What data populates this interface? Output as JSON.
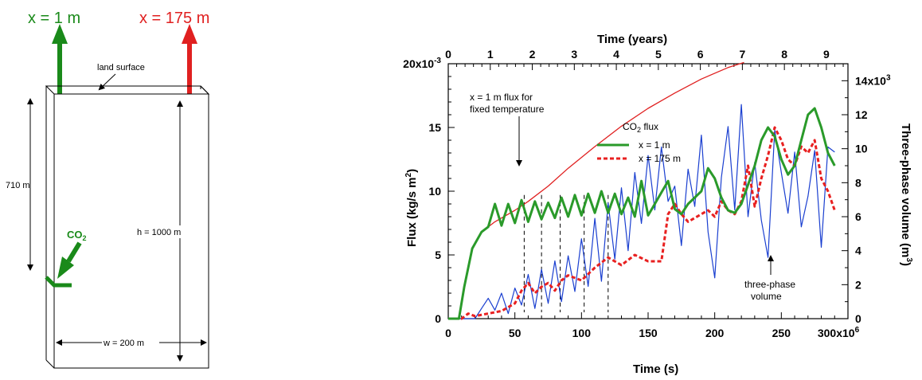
{
  "schematic": {
    "left_label": "x = 1 m",
    "right_label": "x = 175 m",
    "land_surface": "land surface",
    "depth_label": "710 m",
    "height_label": "h = 1000 m",
    "width_label": "w = 200 m",
    "co2_label": "CO",
    "co2_sub": "2",
    "colors": {
      "green": "#1a8a1a",
      "red": "#e02020",
      "black": "#000000"
    }
  },
  "chart_data": {
    "type": "line",
    "xlabel": "Time (s)",
    "x_ticks": [
      "0",
      "50",
      "100",
      "150",
      "200",
      "250",
      "300x10"
    ],
    "x_exp": "6",
    "xlim": [
      0,
      300000000
    ],
    "top_label": "Time (years)",
    "top_ticks": [
      "0",
      "1",
      "2",
      "3",
      "4",
      "5",
      "6",
      "7",
      "8",
      "9"
    ],
    "ylabel_left": "Flux (kg/s m",
    "ylabel_left_sup": "2",
    "ylabel_left_end": ")",
    "left_ticks": [
      "0",
      "5",
      "10",
      "15",
      "20x10"
    ],
    "left_exp": "-3",
    "ylim_left": [
      0,
      0.02
    ],
    "ylabel_right": "Three-phase volume (m",
    "ylabel_right_sup": "3",
    "ylabel_right_end": ")",
    "right_ticks": [
      "0",
      "2",
      "4",
      "6",
      "8",
      "10",
      "12",
      "14x10"
    ],
    "right_exp": "3",
    "ylim_right": [
      0,
      15000
    ],
    "annotations": {
      "fixed_temp_1": "x = 1 m flux for",
      "fixed_temp_2": "fixed temperature",
      "three_phase_1": "three-phase",
      "three_phase_2": "volume"
    },
    "legend": {
      "title": "CO",
      "title_sub": "2",
      "title_end": " flux",
      "s1": "x = 1 m",
      "s2": "x = 175 m"
    },
    "dashed_markers_s": [
      57000000,
      70000000,
      84000000,
      102000000,
      120000000
    ],
    "colors": {
      "fixed": "#e02020",
      "x1": "#2a9a2a",
      "x175": "#e82020",
      "volume": "#1a3fd0"
    },
    "series": [
      {
        "name": "x = 1 m flux for fixed temperature",
        "axis": "left",
        "x": [
          0,
          8000000,
          12000000,
          18000000,
          25000000,
          35000000,
          50000000,
          60000000,
          75000000,
          90000000,
          110000000,
          130000000,
          150000000,
          170000000,
          190000000,
          210000000,
          222000000
        ],
        "values": [
          0,
          0,
          0.0025,
          0.0055,
          0.0068,
          0.0076,
          0.0085,
          0.0092,
          0.0104,
          0.0118,
          0.0135,
          0.0151,
          0.0165,
          0.0177,
          0.0188,
          0.0197,
          0.0201
        ]
      },
      {
        "name": "x = 1 m",
        "axis": "left",
        "x": [
          0,
          8000000,
          12000000,
          18000000,
          25000000,
          30000000,
          35000000,
          40000000,
          45000000,
          50000000,
          55000000,
          60000000,
          65000000,
          70000000,
          75000000,
          80000000,
          85000000,
          90000000,
          95000000,
          100000000,
          105000000,
          110000000,
          115000000,
          120000000,
          125000000,
          130000000,
          135000000,
          140000000,
          145000000,
          150000000,
          155000000,
          160000000,
          165000000,
          170000000,
          175000000,
          180000000,
          185000000,
          190000000,
          195000000,
          200000000,
          205000000,
          210000000,
          215000000,
          220000000,
          225000000,
          230000000,
          235000000,
          240000000,
          245000000,
          250000000,
          255000000,
          260000000,
          265000000,
          270000000,
          275000000,
          280000000,
          285000000,
          290000000
        ],
        "values": [
          0,
          0,
          0.0025,
          0.0055,
          0.0068,
          0.0072,
          0.009,
          0.0073,
          0.009,
          0.0075,
          0.0093,
          0.0076,
          0.0092,
          0.0078,
          0.0091,
          0.0079,
          0.0095,
          0.008,
          0.0097,
          0.0081,
          0.0098,
          0.0083,
          0.01,
          0.0083,
          0.0098,
          0.0082,
          0.0095,
          0.008,
          0.0108,
          0.0081,
          0.009,
          0.0099,
          0.0108,
          0.0086,
          0.0082,
          0.009,
          0.0095,
          0.01,
          0.0118,
          0.011,
          0.0095,
          0.0085,
          0.0083,
          0.009,
          0.0105,
          0.012,
          0.014,
          0.015,
          0.0143,
          0.0125,
          0.0113,
          0.012,
          0.014,
          0.016,
          0.0165,
          0.015,
          0.013,
          0.012
        ]
      },
      {
        "name": "x = 175 m",
        "axis": "left",
        "x": [
          0,
          10000000,
          15000000,
          20000000,
          30000000,
          40000000,
          50000000,
          55000000,
          60000000,
          65000000,
          70000000,
          75000000,
          80000000,
          85000000,
          90000000,
          100000000,
          110000000,
          120000000,
          130000000,
          140000000,
          150000000,
          160000000,
          165000000,
          170000000,
          175000000,
          180000000,
          190000000,
          195000000,
          200000000,
          205000000,
          210000000,
          215000000,
          220000000,
          225000000,
          230000000,
          235000000,
          240000000,
          245000000,
          250000000,
          255000000,
          260000000,
          265000000,
          270000000,
          275000000,
          280000000,
          285000000,
          290000000
        ],
        "values": [
          0,
          0,
          0.0004,
          0.0002,
          0.0004,
          0.0006,
          0.0012,
          0.0022,
          0.0028,
          0.002,
          0.0025,
          0.0028,
          0.0022,
          0.003,
          0.0034,
          0.003,
          0.004,
          0.0048,
          0.0042,
          0.005,
          0.0045,
          0.0045,
          0.0082,
          0.009,
          0.0082,
          0.0076,
          0.0082,
          0.0085,
          0.008,
          0.0092,
          0.0085,
          0.0082,
          0.0092,
          0.012,
          0.0088,
          0.011,
          0.0128,
          0.015,
          0.014,
          0.0125,
          0.012,
          0.0135,
          0.013,
          0.014,
          0.011,
          0.01,
          0.0085
        ]
      },
      {
        "name": "three-phase volume",
        "axis": "right",
        "x": [
          0,
          20000000,
          25000000,
          30000000,
          35000000,
          40000000,
          45000000,
          50000000,
          55000000,
          60000000,
          65000000,
          70000000,
          75000000,
          80000000,
          85000000,
          90000000,
          95000000,
          100000000,
          105000000,
          110000000,
          115000000,
          120000000,
          125000000,
          130000000,
          135000000,
          140000000,
          145000000,
          150000000,
          155000000,
          160000000,
          165000000,
          170000000,
          175000000,
          180000000,
          185000000,
          190000000,
          195000000,
          200000000,
          205000000,
          210000000,
          215000000,
          220000000,
          225000000,
          230000000,
          235000000,
          240000000,
          245000000,
          250000000,
          255000000,
          260000000,
          265000000,
          270000000,
          275000000,
          280000000,
          285000000,
          290000000
        ],
        "values": [
          0,
          0,
          600,
          1200,
          500,
          1500,
          300,
          1800,
          800,
          2600,
          600,
          2900,
          900,
          3400,
          1000,
          3700,
          1600,
          4700,
          1900,
          5900,
          2200,
          6800,
          3500,
          7700,
          4000,
          8600,
          5600,
          9600,
          6400,
          10100,
          6900,
          7800,
          4300,
          8800,
          6600,
          10800,
          5100,
          2400,
          8300,
          11300,
          6400,
          12600,
          6000,
          9200,
          5800,
          3600,
          11100,
          8600,
          6200,
          9800,
          5400,
          7200,
          9900,
          4200,
          10100,
          9800
        ]
      }
    ]
  }
}
